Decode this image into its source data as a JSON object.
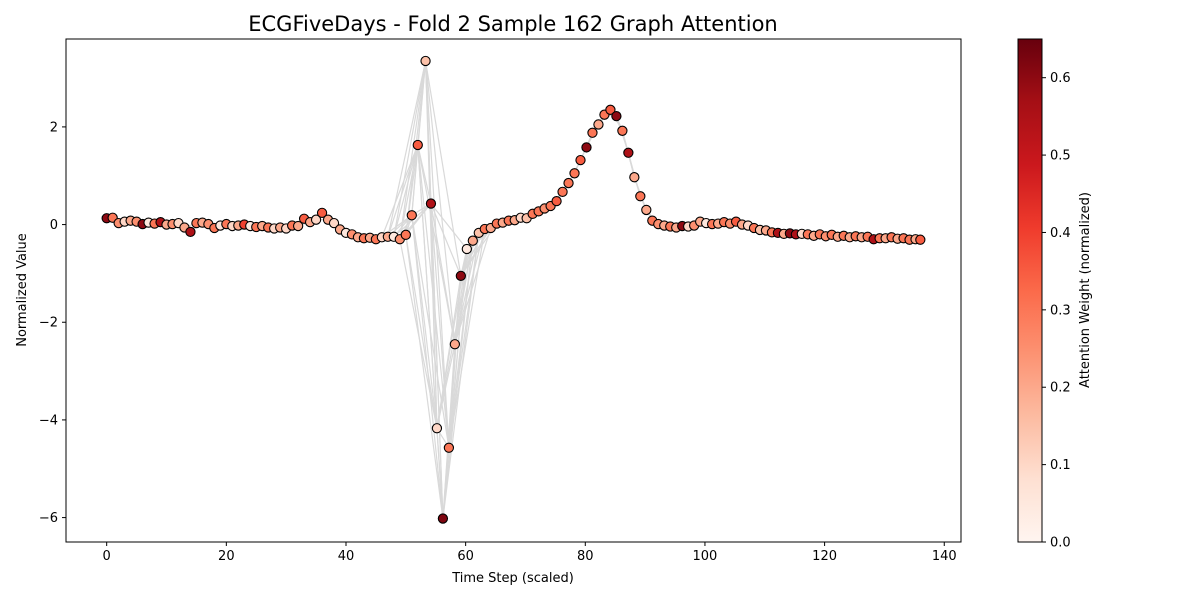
{
  "chart_data": {
    "type": "scatter",
    "title": "ECGFiveDays - Fold 2 Sample 162 Graph Attention",
    "xlabel": "Time Step (scaled)",
    "ylabel": "Normalized Value",
    "xlim": [
      -6.8,
      142.8
    ],
    "ylim": [
      -6.5,
      3.8
    ],
    "xticks": [
      0,
      20,
      40,
      60,
      80,
      100,
      120,
      140
    ],
    "yticks": [
      -6,
      -4,
      -2,
      0,
      2
    ],
    "grid": false,
    "colorbar": {
      "label": "Attention Weight (normalized)",
      "min": 0.0,
      "max": 0.65,
      "ticks": [
        0.0,
        0.1,
        0.2,
        0.3,
        0.4,
        0.5,
        0.6
      ],
      "colormap": "Reds",
      "colors": [
        "#fff5f0",
        "#fee0d2",
        "#fcbba1",
        "#fc9272",
        "#fb6a4a",
        "#ef3b2c",
        "#cb181d",
        "#a50f15",
        "#67000d"
      ]
    },
    "edge_color": "#d9d9d9",
    "points": [
      {
        "x": 0,
        "y": 0.13,
        "w": 0.6
      },
      {
        "x": 1,
        "y": 0.14,
        "w": 0.3
      },
      {
        "x": 2,
        "y": 0.03,
        "w": 0.25
      },
      {
        "x": 3,
        "y": 0.06,
        "w": 0.1
      },
      {
        "x": 4,
        "y": 0.08,
        "w": 0.2
      },
      {
        "x": 5,
        "y": 0.06,
        "w": 0.25
      },
      {
        "x": 6,
        "y": 0.01,
        "w": 0.6
      },
      {
        "x": 7,
        "y": 0.04,
        "w": 0.05
      },
      {
        "x": 8,
        "y": 0.02,
        "w": 0.3
      },
      {
        "x": 9,
        "y": 0.05,
        "w": 0.55
      },
      {
        "x": 10,
        "y": 0.0,
        "w": 0.2
      },
      {
        "x": 11,
        "y": 0.01,
        "w": 0.25
      },
      {
        "x": 12,
        "y": 0.03,
        "w": 0.1
      },
      {
        "x": 13,
        "y": -0.06,
        "w": 0.2
      },
      {
        "x": 14,
        "y": -0.15,
        "w": 0.55
      },
      {
        "x": 15,
        "y": 0.03,
        "w": 0.3
      },
      {
        "x": 16,
        "y": 0.04,
        "w": 0.2
      },
      {
        "x": 17,
        "y": 0.01,
        "w": 0.25
      },
      {
        "x": 18,
        "y": -0.07,
        "w": 0.3
      },
      {
        "x": 19,
        "y": -0.02,
        "w": 0.05
      },
      {
        "x": 20,
        "y": 0.01,
        "w": 0.3
      },
      {
        "x": 21,
        "y": -0.03,
        "w": 0.1
      },
      {
        "x": 22,
        "y": -0.02,
        "w": 0.2
      },
      {
        "x": 23,
        "y": 0.0,
        "w": 0.4
      },
      {
        "x": 24,
        "y": -0.03,
        "w": 0.05
      },
      {
        "x": 25,
        "y": -0.05,
        "w": 0.3
      },
      {
        "x": 26,
        "y": -0.03,
        "w": 0.2
      },
      {
        "x": 27,
        "y": -0.06,
        "w": 0.3
      },
      {
        "x": 28,
        "y": -0.08,
        "w": 0.1
      },
      {
        "x": 29,
        "y": -0.06,
        "w": 0.2
      },
      {
        "x": 30,
        "y": -0.08,
        "w": 0.1
      },
      {
        "x": 31,
        "y": -0.02,
        "w": 0.3
      },
      {
        "x": 32,
        "y": -0.03,
        "w": 0.2
      },
      {
        "x": 33,
        "y": 0.12,
        "w": 0.35
      },
      {
        "x": 34,
        "y": 0.05,
        "w": 0.2
      },
      {
        "x": 35,
        "y": 0.1,
        "w": 0.1
      },
      {
        "x": 36,
        "y": 0.24,
        "w": 0.35
      },
      {
        "x": 37,
        "y": 0.1,
        "w": 0.2
      },
      {
        "x": 38,
        "y": 0.03,
        "w": 0.1
      },
      {
        "x": 39,
        "y": -0.1,
        "w": 0.2
      },
      {
        "x": 40,
        "y": -0.17,
        "w": 0.05
      },
      {
        "x": 41,
        "y": -0.2,
        "w": 0.25
      },
      {
        "x": 42,
        "y": -0.26,
        "w": 0.2
      },
      {
        "x": 43,
        "y": -0.28,
        "w": 0.3
      },
      {
        "x": 44,
        "y": -0.27,
        "w": 0.2
      },
      {
        "x": 45,
        "y": -0.3,
        "w": 0.3
      },
      {
        "x": 46,
        "y": -0.26,
        "w": 0.1
      },
      {
        "x": 47,
        "y": -0.25,
        "w": 0.2
      },
      {
        "x": 48,
        "y": -0.25,
        "w": 0.05
      },
      {
        "x": 49,
        "y": -0.3,
        "w": 0.25
      },
      {
        "x": 50,
        "y": -0.21,
        "w": 0.3
      },
      {
        "x": 51,
        "y": 0.19,
        "w": 0.3
      },
      {
        "x": 52,
        "y": 1.63,
        "w": 0.35
      },
      {
        "x": 53.3,
        "y": 3.35,
        "w": 0.15
      },
      {
        "x": 54.2,
        "y": 0.43,
        "w": 0.55
      },
      {
        "x": 55.2,
        "y": -4.17,
        "w": 0.1
      },
      {
        "x": 56.2,
        "y": -6.02,
        "w": 0.62
      },
      {
        "x": 57.2,
        "y": -4.57,
        "w": 0.3
      },
      {
        "x": 58.2,
        "y": -2.45,
        "w": 0.2
      },
      {
        "x": 59.2,
        "y": -1.05,
        "w": 0.6
      },
      {
        "x": 60.2,
        "y": -0.5,
        "w": 0.05
      },
      {
        "x": 61.2,
        "y": -0.33,
        "w": 0.2
      },
      {
        "x": 62.2,
        "y": -0.17,
        "w": 0.15
      },
      {
        "x": 63.2,
        "y": -0.09,
        "w": 0.3
      },
      {
        "x": 64.2,
        "y": -0.07,
        "w": 0.2
      },
      {
        "x": 65.2,
        "y": 0.02,
        "w": 0.3
      },
      {
        "x": 66.2,
        "y": 0.04,
        "w": 0.2
      },
      {
        "x": 67.2,
        "y": 0.08,
        "w": 0.3
      },
      {
        "x": 68.2,
        "y": 0.09,
        "w": 0.2
      },
      {
        "x": 69.2,
        "y": 0.14,
        "w": 0.1
      },
      {
        "x": 70.2,
        "y": 0.13,
        "w": 0.15
      },
      {
        "x": 71.2,
        "y": 0.22,
        "w": 0.3
      },
      {
        "x": 72.2,
        "y": 0.27,
        "w": 0.3
      },
      {
        "x": 73.2,
        "y": 0.33,
        "w": 0.25
      },
      {
        "x": 74.2,
        "y": 0.38,
        "w": 0.3
      },
      {
        "x": 75.2,
        "y": 0.48,
        "w": 0.35
      },
      {
        "x": 76.2,
        "y": 0.67,
        "w": 0.3
      },
      {
        "x": 77.2,
        "y": 0.85,
        "w": 0.3
      },
      {
        "x": 78.2,
        "y": 1.05,
        "w": 0.3
      },
      {
        "x": 79.2,
        "y": 1.32,
        "w": 0.35
      },
      {
        "x": 80.2,
        "y": 1.58,
        "w": 0.6
      },
      {
        "x": 81.2,
        "y": 1.88,
        "w": 0.3
      },
      {
        "x": 82.2,
        "y": 2.05,
        "w": 0.2
      },
      {
        "x": 83.2,
        "y": 2.25,
        "w": 0.3
      },
      {
        "x": 84.2,
        "y": 2.35,
        "w": 0.35
      },
      {
        "x": 85.2,
        "y": 2.22,
        "w": 0.6
      },
      {
        "x": 86.2,
        "y": 1.92,
        "w": 0.3
      },
      {
        "x": 87.2,
        "y": 1.47,
        "w": 0.55
      },
      {
        "x": 88.2,
        "y": 0.97,
        "w": 0.2
      },
      {
        "x": 89.2,
        "y": 0.58,
        "w": 0.3
      },
      {
        "x": 90.2,
        "y": 0.3,
        "w": 0.2
      },
      {
        "x": 91.2,
        "y": 0.08,
        "w": 0.3
      },
      {
        "x": 92.2,
        "y": 0.01,
        "w": 0.25
      },
      {
        "x": 93.2,
        "y": -0.02,
        "w": 0.2
      },
      {
        "x": 94.2,
        "y": -0.04,
        "w": 0.3
      },
      {
        "x": 95.2,
        "y": -0.06,
        "w": 0.2
      },
      {
        "x": 96.2,
        "y": -0.03,
        "w": 0.6
      },
      {
        "x": 97.2,
        "y": -0.04,
        "w": 0.1
      },
      {
        "x": 98.2,
        "y": -0.02,
        "w": 0.25
      },
      {
        "x": 99.2,
        "y": 0.06,
        "w": 0.2
      },
      {
        "x": 100.2,
        "y": 0.03,
        "w": 0.05
      },
      {
        "x": 101.2,
        "y": 0.01,
        "w": 0.3
      },
      {
        "x": 102.2,
        "y": 0.02,
        "w": 0.2
      },
      {
        "x": 103.2,
        "y": 0.05,
        "w": 0.3
      },
      {
        "x": 104.2,
        "y": 0.02,
        "w": 0.25
      },
      {
        "x": 105.2,
        "y": 0.06,
        "w": 0.35
      },
      {
        "x": 106.2,
        "y": 0.0,
        "w": 0.2
      },
      {
        "x": 107.2,
        "y": -0.02,
        "w": 0.1
      },
      {
        "x": 108.2,
        "y": -0.07,
        "w": 0.3
      },
      {
        "x": 109.2,
        "y": -0.11,
        "w": 0.15
      },
      {
        "x": 110.2,
        "y": -0.12,
        "w": 0.2
      },
      {
        "x": 111.2,
        "y": -0.16,
        "w": 0.3
      },
      {
        "x": 112.2,
        "y": -0.17,
        "w": 0.55
      },
      {
        "x": 113.2,
        "y": -0.19,
        "w": 0.2
      },
      {
        "x": 114.2,
        "y": -0.18,
        "w": 0.6
      },
      {
        "x": 115.2,
        "y": -0.2,
        "w": 0.55
      },
      {
        "x": 116.2,
        "y": -0.19,
        "w": 0.1
      },
      {
        "x": 117.2,
        "y": -0.2,
        "w": 0.3
      },
      {
        "x": 118.2,
        "y": -0.23,
        "w": 0.2
      },
      {
        "x": 119.2,
        "y": -0.2,
        "w": 0.3
      },
      {
        "x": 120.2,
        "y": -0.24,
        "w": 0.25
      },
      {
        "x": 121.2,
        "y": -0.21,
        "w": 0.3
      },
      {
        "x": 122.2,
        "y": -0.25,
        "w": 0.2
      },
      {
        "x": 123.2,
        "y": -0.23,
        "w": 0.3
      },
      {
        "x": 124.2,
        "y": -0.26,
        "w": 0.2
      },
      {
        "x": 125.2,
        "y": -0.24,
        "w": 0.3
      },
      {
        "x": 126.2,
        "y": -0.26,
        "w": 0.2
      },
      {
        "x": 127.2,
        "y": -0.25,
        "w": 0.3
      },
      {
        "x": 128.2,
        "y": -0.3,
        "w": 0.55
      },
      {
        "x": 129.2,
        "y": -0.28,
        "w": 0.3
      },
      {
        "x": 130.2,
        "y": -0.28,
        "w": 0.2
      },
      {
        "x": 131.2,
        "y": -0.26,
        "w": 0.3
      },
      {
        "x": 132.2,
        "y": -0.29,
        "w": 0.2
      },
      {
        "x": 133.2,
        "y": -0.28,
        "w": 0.3
      },
      {
        "x": 134.2,
        "y": -0.31,
        "w": 0.3
      },
      {
        "x": 135.2,
        "y": -0.3,
        "w": 0.2
      },
      {
        "x": 136,
        "y": -0.31,
        "w": 0.35
      }
    ]
  }
}
